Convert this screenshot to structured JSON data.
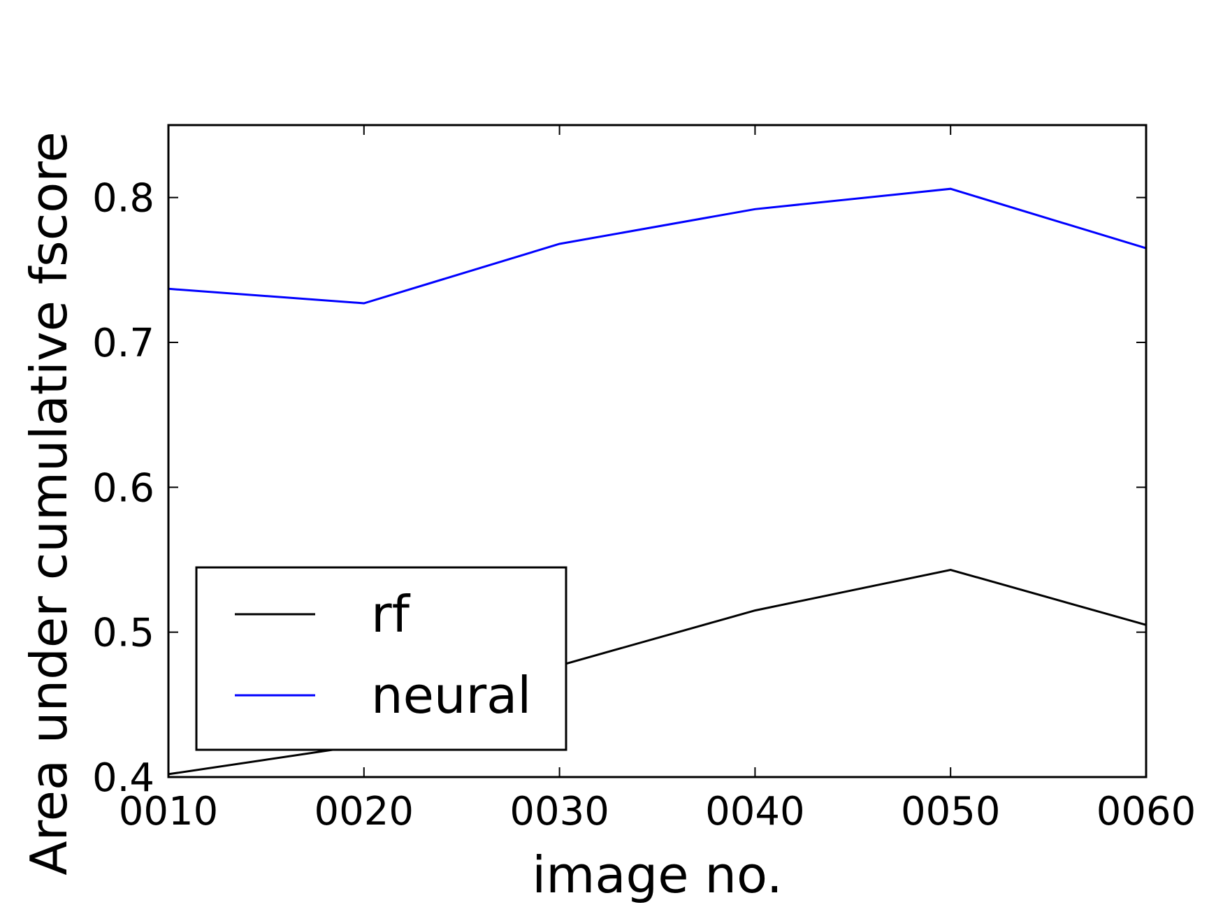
{
  "chart_data": {
    "type": "line",
    "title": "",
    "xlabel": "image no.",
    "ylabel": "Area under cumulative fscore",
    "x_ticks": [
      "0010",
      "0020",
      "0030",
      "0040",
      "0050",
      "0060"
    ],
    "x": [
      10,
      20,
      30,
      40,
      50,
      60
    ],
    "xlim": [
      10,
      60
    ],
    "ylim": [
      0.4,
      0.85
    ],
    "y_ticks": [
      0.4,
      0.5,
      0.6,
      0.7,
      0.8
    ],
    "y_tick_labels": [
      "0.4",
      "0.5",
      "0.6",
      "0.7",
      "0.8"
    ],
    "grid": false,
    "legend_position": "lower-left",
    "series": [
      {
        "name": "rf",
        "color": "#000000",
        "values": [
          0.402,
          0.422,
          0.477,
          0.515,
          0.543,
          0.505
        ]
      },
      {
        "name": "neural",
        "color": "#0000ff",
        "values": [
          0.737,
          0.727,
          0.768,
          0.792,
          0.806,
          0.765
        ]
      }
    ]
  }
}
